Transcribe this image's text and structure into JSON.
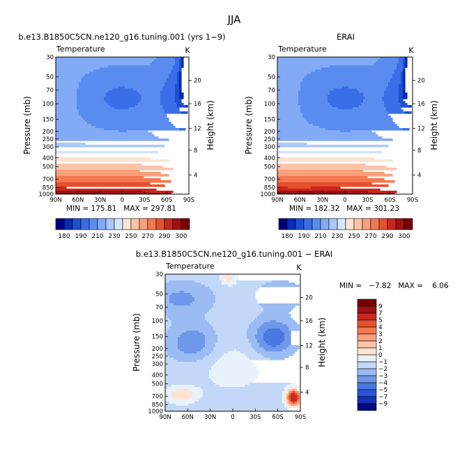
{
  "page": {
    "title": "JJA"
  },
  "chart_data": [
    {
      "type": "heatmap",
      "title": "b.e13.B1850C5CN.ne120_g16.tuning.001 (yrs 1−9)",
      "left_label": "Temperature",
      "right_label": "K",
      "ylabel": "Pressure (mb)",
      "ylabel_right": "Height (km)",
      "x_ticks": [
        "90N",
        "60N",
        "30N",
        "0",
        "30S",
        "60S",
        "90S"
      ],
      "y_ticks": [
        "30",
        "50",
        "70",
        "100",
        "150",
        "200",
        "250",
        "300",
        "400",
        "500",
        "700",
        "850",
        "1000"
      ],
      "height_ticks": [
        "20",
        "16",
        "12",
        "8",
        "4"
      ],
      "stats_text": "MIN = 175.81   MAX = 297.81",
      "min": 175.81,
      "max": 297.81,
      "colorbar_labels": [
        "180",
        "190",
        "210",
        "230",
        "250",
        "270",
        "290",
        "300"
      ]
    },
    {
      "type": "heatmap",
      "title": "ERAI",
      "left_label": "Temperature",
      "right_label": "K",
      "ylabel": "Pressure (mb)",
      "ylabel_right": "Height (km)",
      "x_ticks": [
        "90N",
        "60N",
        "30N",
        "0",
        "30S",
        "60S",
        "90S"
      ],
      "y_ticks": [
        "30",
        "50",
        "70",
        "100",
        "150",
        "200",
        "250",
        "300",
        "400",
        "500",
        "700",
        "850",
        "1000"
      ],
      "height_ticks": [
        "20",
        "16",
        "12",
        "8",
        "4"
      ],
      "stats_text": "MIN = 182.32   MAX = 301.23",
      "min": 182.32,
      "max": 301.23,
      "colorbar_labels": [
        "180",
        "190",
        "210",
        "230",
        "250",
        "270",
        "290",
        "300"
      ]
    },
    {
      "type": "heatmap",
      "title": "b.e13.B1850C5CN.ne120_g16.tuning.001 − ERAI",
      "left_label": "Temperature",
      "right_label": "K",
      "ylabel": "Pressure (mb)",
      "ylabel_right": "Height (km)",
      "x_ticks": [
        "90N",
        "60N",
        "30N",
        "0",
        "30S",
        "60S",
        "90S"
      ],
      "y_ticks": [
        "30",
        "50",
        "70",
        "100",
        "150",
        "200",
        "250",
        "300",
        "400",
        "500",
        "700",
        "850",
        "1000"
      ],
      "height_ticks": [
        "20",
        "16",
        "12",
        "8",
        "4"
      ],
      "stats_text": "MIN =   −7.82   MAX =    6.06",
      "min": -7.82,
      "max": 6.06,
      "colorbar_labels": [
        "9",
        "7",
        "5",
        "4",
        "3",
        "2",
        "1",
        "0",
        "−1",
        "−2",
        "−3",
        "−4",
        "−5",
        "−7",
        "−9"
      ]
    }
  ],
  "colors": {
    "abs_scale": [
      "#00007d",
      "#0a2ab4",
      "#1e50d2",
      "#3a6ee6",
      "#5a8cf0",
      "#82aaf5",
      "#aac8fa",
      "#d2e6fc",
      "#fde4d2",
      "#fcc4a8",
      "#f8a07a",
      "#f47850",
      "#e6502d",
      "#c8281e",
      "#a00f14",
      "#780000"
    ],
    "diff_scale": [
      "#780000",
      "#a00f14",
      "#c8281e",
      "#e6502d",
      "#f47850",
      "#f8a07a",
      "#fcc4a8",
      "#fde4d2",
      "#e8f2fc",
      "#c3d8f8",
      "#9bbcf2",
      "#6e98ea",
      "#4a78e0",
      "#2a56d2",
      "#1232b4",
      "#000a82"
    ]
  }
}
